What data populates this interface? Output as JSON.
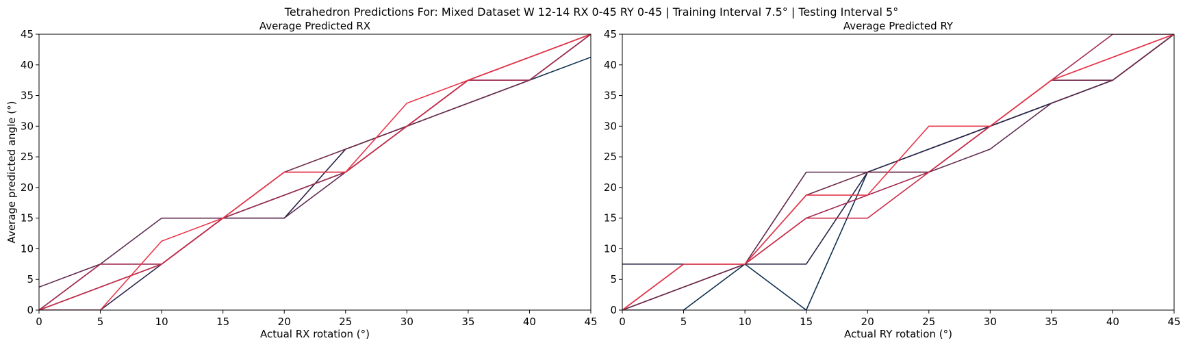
{
  "figure": {
    "suptitle": "Tetrahedron Predictions For: Mixed Dataset W 12-14 RX 0-45 RY 0-45 | Training Interval 7.5° | Testing Interval 5°"
  },
  "chart_data": [
    {
      "type": "line",
      "title": "Average Predicted RX",
      "xlabel": "Actual RX rotation (°)",
      "ylabel": "Average predicted angle (°)",
      "xlim": [
        0,
        45
      ],
      "ylim": [
        0,
        45
      ],
      "xticks": [
        0,
        5,
        10,
        15,
        20,
        25,
        30,
        35,
        40,
        45
      ],
      "yticks": [
        0,
        5,
        10,
        15,
        20,
        25,
        30,
        35,
        40,
        45
      ],
      "grid": false,
      "x": [
        0,
        5,
        10,
        15,
        20,
        25,
        30,
        35,
        40,
        45
      ],
      "series": [
        {
          "color": "#0d2f4f",
          "values": [
            0,
            3.75,
            7.5,
            15,
            18.75,
            22.5,
            30,
            33.75,
            37.5,
            41.25
          ]
        },
        {
          "color": "#2a2247",
          "values": [
            0,
            0,
            7.5,
            15,
            15,
            26.25,
            30,
            37.5,
            41.25,
            45
          ]
        },
        {
          "color": "#5e2a4e",
          "values": [
            3.75,
            7.5,
            15,
            15,
            15,
            22.5,
            30,
            37.5,
            37.5,
            45
          ]
        },
        {
          "color": "#6e2b4a",
          "values": [
            0,
            7.5,
            7.5,
            15,
            22.5,
            26.25,
            30,
            33.75,
            37.5,
            45
          ]
        },
        {
          "color": "#a12a4e",
          "values": [
            0,
            7.5,
            7.5,
            15,
            18.75,
            22.5,
            30,
            37.5,
            37.5,
            45
          ]
        },
        {
          "color": "#cc2a48",
          "values": [
            0,
            3.75,
            7.5,
            15,
            22.5,
            22.5,
            30,
            37.5,
            41.25,
            45
          ]
        },
        {
          "color": "#e8364a",
          "values": [
            0,
            0,
            11.25,
            15,
            22.5,
            22.5,
            33.75,
            37.5,
            41.25,
            45
          ]
        }
      ]
    },
    {
      "type": "line",
      "title": "Average Predicted RY",
      "xlabel": "Actual RY rotation (°)",
      "ylabel": "",
      "xlim": [
        0,
        45
      ],
      "ylim": [
        0,
        45
      ],
      "xticks": [
        0,
        5,
        10,
        15,
        20,
        25,
        30,
        35,
        40,
        45
      ],
      "yticks": [
        0,
        5,
        10,
        15,
        20,
        25,
        30,
        35,
        40,
        45
      ],
      "grid": false,
      "x": [
        0,
        5,
        10,
        15,
        20,
        25,
        30,
        35,
        40,
        45
      ],
      "series": [
        {
          "color": "#0d2f4f",
          "values": [
            0,
            0,
            7.5,
            0,
            22.5,
            26.25,
            30,
            33.75,
            37.5,
            45
          ]
        },
        {
          "color": "#2a2247",
          "values": [
            7.5,
            7.5,
            7.5,
            7.5,
            22.5,
            26.25,
            30,
            33.75,
            37.5,
            45
          ]
        },
        {
          "color": "#5e2a4e",
          "values": [
            0,
            3.75,
            7.5,
            22.5,
            22.5,
            22.5,
            26.25,
            33.75,
            37.5,
            45
          ]
        },
        {
          "color": "#6e2b4a",
          "values": [
            0,
            3.75,
            7.5,
            18.75,
            22.5,
            22.5,
            30,
            37.5,
            37.5,
            45
          ]
        },
        {
          "color": "#a12a4e",
          "values": [
            0,
            7.5,
            7.5,
            15,
            18.75,
            22.5,
            30,
            37.5,
            45,
            45
          ]
        },
        {
          "color": "#cc2a48",
          "values": [
            0,
            7.5,
            7.5,
            15,
            15,
            22.5,
            30,
            37.5,
            41.25,
            45
          ]
        },
        {
          "color": "#e8364a",
          "values": [
            0,
            7.5,
            7.5,
            18.75,
            18.75,
            30,
            30,
            37.5,
            41.25,
            45
          ]
        }
      ]
    }
  ]
}
